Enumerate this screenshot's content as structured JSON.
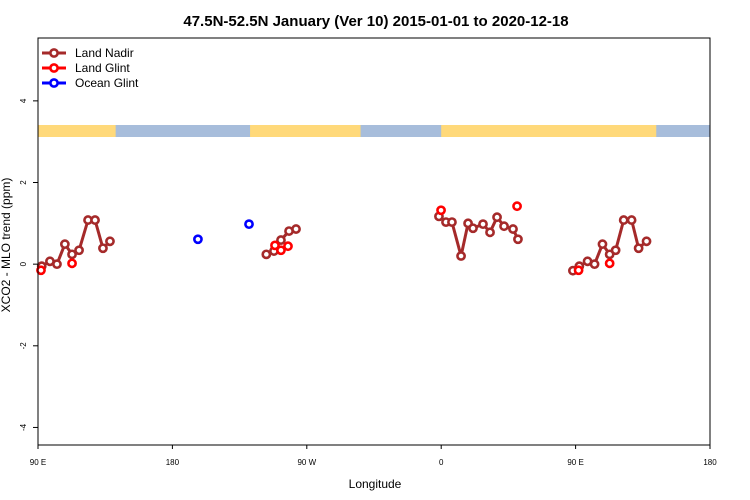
{
  "chart_data": {
    "type": "line",
    "title": "47.5N-52.5N January (Ver 10)   2015-01-01 to 2020-12-18",
    "xlabel": "Longitude",
    "ylabel": "XCO2 - MLO trend (ppm)",
    "xlim": [
      90,
      540
    ],
    "ylim": [
      -4.43,
      5.54
    ],
    "x_ticks": [
      {
        "value": 90,
        "label": "90 E"
      },
      {
        "value": 180,
        "label": "180"
      },
      {
        "value": 270,
        "label": "90 W"
      },
      {
        "value": 360,
        "label": "0"
      },
      {
        "value": 450,
        "label": "90 E"
      },
      {
        "value": 540,
        "label": "180"
      }
    ],
    "y_ticks": [
      {
        "value": 4,
        "label": "4"
      },
      {
        "value": 2,
        "label": "2"
      },
      {
        "value": 0,
        "label": "0"
      },
      {
        "value": -2,
        "label": "-2"
      },
      {
        "value": -4,
        "label": "-4"
      }
    ],
    "legend_position": "top-left",
    "land_color": "#FFD97A",
    "ocean_color": "#A7BDDB",
    "map_land_ranges": [
      [
        90,
        142
      ],
      [
        232,
        306
      ],
      [
        360,
        504
      ]
    ],
    "series": [
      {
        "name": "Land Nadir",
        "color": "#A52A2A",
        "line": true,
        "segments": [
          [
            [
              92.5,
              -0.05
            ],
            [
              98,
              0.07
            ],
            [
              102.7,
              0
            ],
            [
              108,
              0.49
            ],
            [
              112.8,
              0.24
            ],
            [
              117.5,
              0.34
            ],
            [
              123.5,
              1.08
            ],
            [
              128.2,
              1.08
            ],
            [
              133.5,
              0.39
            ],
            [
              138.2,
              0.56
            ]
          ],
          [
            [
              242.9,
              0.24
            ],
            [
              248,
              0.32
            ],
            [
              252.7,
              0.59
            ],
            [
              258.1,
              0.81
            ],
            [
              262.8,
              0.86
            ]
          ],
          [
            [
              358.5,
              1.17
            ],
            [
              363.2,
              1.03
            ],
            [
              367.2,
              1.03
            ],
            [
              373.3,
              0.2
            ],
            [
              378,
              1.0
            ],
            [
              381.3,
              0.88
            ],
            [
              388,
              0.98
            ],
            [
              392.7,
              0.78
            ],
            [
              397.4,
              1.15
            ],
            [
              402.1,
              0.93
            ],
            [
              408.1,
              0.86
            ],
            [
              411.4,
              0.61
            ]
          ],
          [
            [
              448.2,
              -0.16
            ],
            [
              452.5,
              -0.05
            ],
            [
              458,
              0.07
            ],
            [
              462.7,
              0
            ],
            [
              468,
              0.49
            ],
            [
              472.8,
              0.24
            ],
            [
              476.8,
              0.34
            ],
            [
              482.2,
              1.08
            ],
            [
              487.5,
              1.08
            ],
            [
              492.2,
              0.39
            ],
            [
              497.5,
              0.56
            ]
          ]
        ]
      },
      {
        "name": "Land Glint",
        "color": "#FF0000",
        "line": false,
        "segments": [
          [
            [
              92,
              -0.15
            ],
            [
              112.8,
              0.02
            ],
            [
              248.7,
              0.46
            ],
            [
              252.7,
              0.34
            ],
            [
              257.4,
              0.44
            ],
            [
              359.9,
              1.32
            ],
            [
              410.8,
              1.42
            ],
            [
              452,
              -0.15
            ],
            [
              472.8,
              0.02
            ]
          ]
        ]
      },
      {
        "name": "Ocean Glint",
        "color": "#0000FF",
        "line": false,
        "segments": [
          [
            [
              197.1,
              0.61
            ],
            [
              231.3,
              0.98
            ]
          ]
        ]
      }
    ]
  }
}
